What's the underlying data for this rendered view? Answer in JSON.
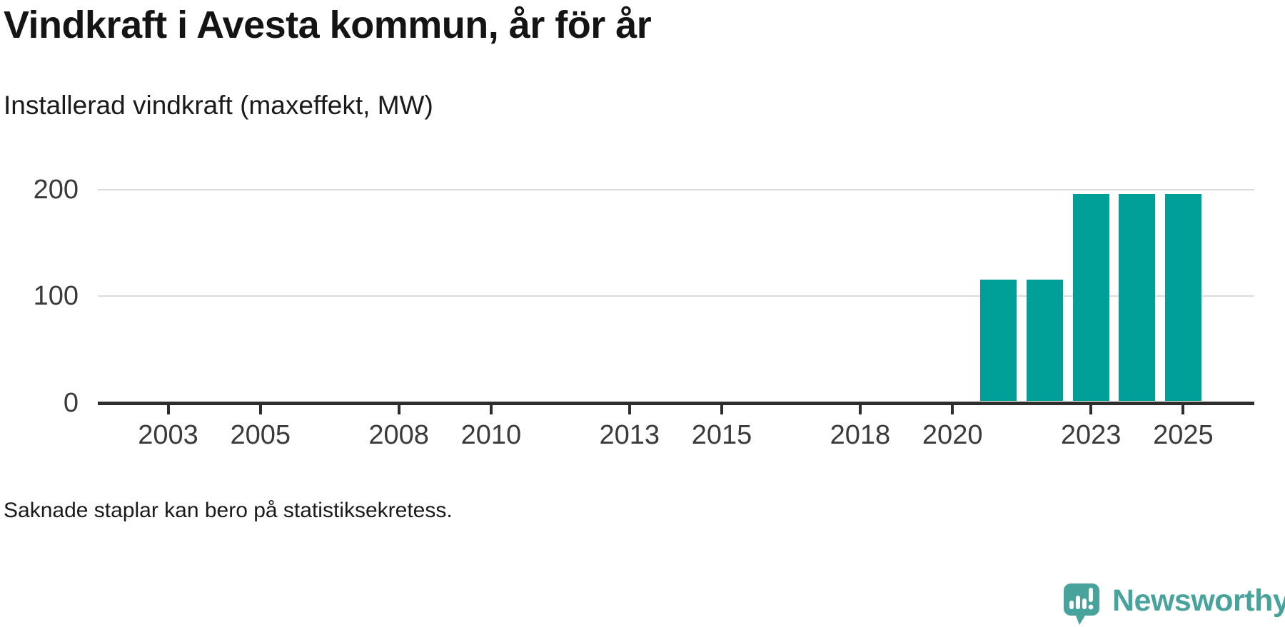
{
  "header": {
    "title": "Vindkraft i Avesta kommun, år för år",
    "subtitle": "Installerad vindkraft (maxeffekt, MW)"
  },
  "footer": {
    "note": "Saknade staplar kan bero på statistiksekretess.",
    "logo_text": "Newsworthy"
  },
  "colors": {
    "bar": "#00a099",
    "logo_teal": "#48a39c",
    "gridline": "#dcdcdc",
    "axis": "#2e2e2e",
    "tick_text": "#3a3a3a",
    "title_text": "#141414"
  },
  "chart_data": {
    "type": "bar",
    "title": "Vindkraft i Avesta kommun, år för år",
    "subtitle": "Installerad vindkraft (maxeffekt, MW)",
    "xlabel": "",
    "ylabel": "Installerad vindkraft (maxeffekt, MW)",
    "series": [
      {
        "name": "Installerad vindkraft (MW)",
        "x": [
          2021,
          2022,
          2023,
          2024,
          2025
        ],
        "values": [
          115.5,
          115.5,
          195.5,
          195.5,
          195.5
        ]
      }
    ],
    "x_domain": [
      2001.5,
      2026.5
    ],
    "x_ticks": [
      2003,
      2005,
      2008,
      2010,
      2013,
      2015,
      2018,
      2020,
      2023,
      2025
    ],
    "x_tick_labels": [
      "2003",
      "2005",
      "2008",
      "2010",
      "2013",
      "2015",
      "2018",
      "2020",
      "2023",
      "2025"
    ],
    "y_ticks": [
      0,
      100,
      200
    ],
    "y_tick_labels": [
      "0",
      "100",
      "200"
    ],
    "ylim": [
      0,
      230
    ],
    "grid": "horizontal-only",
    "legend": "none",
    "bar_color": "#00a099",
    "note": "Saknade staplar kan bero på statistiksekretess."
  }
}
